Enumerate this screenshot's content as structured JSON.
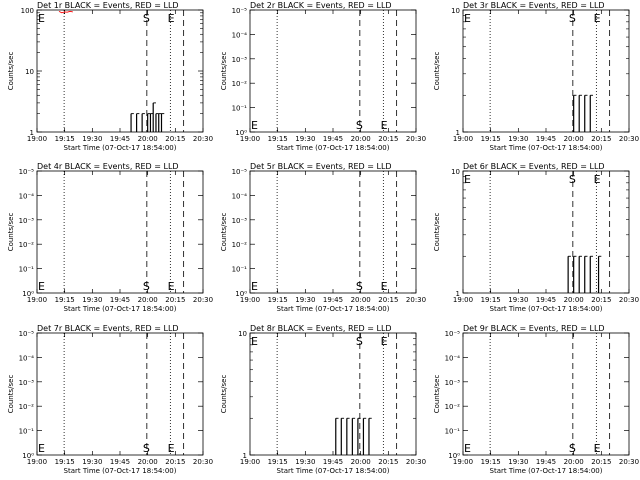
{
  "figure": {
    "xlabel": "Start Time (07-Oct-17 18:54:00)",
    "ylabel": "Counts/sec",
    "x_ticks": [
      "19:00",
      "19:15",
      "19:30",
      "19:45",
      "20:00",
      "20:15",
      "20:30"
    ],
    "colors": {
      "events": "#000000",
      "lld": "#ff0000",
      "background": "#ffffff"
    }
  },
  "chart_data": [
    {
      "type": "line",
      "title": "Det 1r BLACK = Events, RED = LLD",
      "y_scale": "log",
      "y_tick_labels": [
        "1",
        "10",
        "100"
      ],
      "ylim": [
        1,
        100
      ],
      "markers": {
        "E": "E",
        "S": "S",
        "E2": "E"
      },
      "series": [
        {
          "values": [
            [
              33,
              1
            ],
            [
              34,
              2
            ],
            [
              35,
              1
            ],
            [
              36,
              2
            ],
            [
              37,
              1
            ],
            [
              38,
              2
            ],
            [
              39,
              1
            ],
            [
              40,
              2
            ],
            [
              41,
              2
            ],
            [
              42,
              3
            ],
            [
              43,
              2
            ],
            [
              44,
              2
            ],
            [
              45,
              2
            ],
            [
              46,
              1
            ]
          ]
        },
        {
          "name": "LLD",
          "values": [
            [
              0,
              95
            ],
            [
              1,
              90
            ],
            [
              2,
              93
            ],
            [
              3,
              92
            ],
            [
              4,
              95
            ],
            [
              5,
              93
            ]
          ]
        }
      ]
    },
    {
      "type": "line",
      "title": "Det 2r BLACK = Events, RED = LLD",
      "y_scale": "log",
      "y_tick_labels": [
        "10⁰",
        "10⁻¹",
        "10⁻²",
        "10⁻³",
        "10⁻⁴",
        "10⁻⁵"
      ],
      "markers": {
        "E": "E",
        "S": "S",
        "E2": "E"
      },
      "series": []
    },
    {
      "type": "line",
      "title": "Det 3r BLACK = Events, RED = LLD",
      "y_scale": "log",
      "y_tick_labels": [
        "1",
        "10"
      ],
      "ylim": [
        1,
        10
      ],
      "markers": {
        "E": "E",
        "S": "S",
        "E2": "E"
      },
      "series": [
        {
          "values": [
            [
              39,
              1
            ],
            [
              40,
              2
            ],
            [
              41,
              1
            ],
            [
              42,
              2
            ],
            [
              43,
              1
            ],
            [
              44,
              2
            ],
            [
              45,
              1
            ],
            [
              46,
              2
            ],
            [
              47,
              1
            ]
          ]
        }
      ]
    },
    {
      "type": "line",
      "title": "Det 4r BLACK = Events, RED = LLD",
      "y_scale": "log",
      "y_tick_labels": [
        "10⁰",
        "10⁻¹",
        "10⁻²",
        "10⁻³",
        "10⁻⁴",
        "10⁻⁵"
      ],
      "markers": {
        "E": "E",
        "S": "S",
        "E2": "E"
      },
      "series": []
    },
    {
      "type": "line",
      "title": "Det 5r BLACK = Events, RED = LLD",
      "y_scale": "log",
      "y_tick_labels": [
        "10⁰",
        "10⁻¹",
        "10⁻²",
        "10⁻³",
        "10⁻⁴",
        "10⁻⁵"
      ],
      "markers": {
        "E": "E",
        "S": "S",
        "E2": "E"
      },
      "series": []
    },
    {
      "type": "line",
      "title": "Det 6r BLACK = Events, RED = LLD",
      "y_scale": "log",
      "y_tick_labels": [
        "1",
        "10"
      ],
      "ylim": [
        1,
        10
      ],
      "markers": {
        "E": "E",
        "S": "S",
        "E2": "E"
      },
      "series": [
        {
          "values": [
            [
              37,
              1
            ],
            [
              38,
              2
            ],
            [
              39,
              1
            ],
            [
              40,
              2
            ],
            [
              41,
              1
            ],
            [
              42,
              2
            ],
            [
              43,
              1
            ],
            [
              44,
              2
            ],
            [
              45,
              1
            ],
            [
              46,
              2
            ],
            [
              48,
              1
            ],
            [
              49,
              2
            ],
            [
              50,
              1
            ]
          ]
        }
      ]
    },
    {
      "type": "line",
      "title": "Det 7r BLACK = Events, RED = LLD",
      "y_scale": "log",
      "y_tick_labels": [
        "10⁰",
        "10⁻¹",
        "10⁻²",
        "10⁻³",
        "10⁻⁴",
        "10⁻⁵"
      ],
      "markers": {
        "E": "E",
        "S": "S",
        "E2": "E"
      },
      "series": []
    },
    {
      "type": "line",
      "title": "Det 8r BLACK = Events, RED = LLD",
      "y_scale": "log",
      "y_tick_labels": [
        "1",
        "10"
      ],
      "ylim": [
        1,
        10
      ],
      "markers": {
        "E": "E",
        "S": "S",
        "E2": "E"
      },
      "series": [
        {
          "values": [
            [
              30,
              1
            ],
            [
              31,
              2
            ],
            [
              32,
              1
            ],
            [
              33,
              2
            ],
            [
              34,
              1
            ],
            [
              35,
              2
            ],
            [
              36,
              1
            ],
            [
              37,
              2
            ],
            [
              38,
              1
            ],
            [
              39,
              2
            ],
            [
              40,
              1
            ],
            [
              41,
              2
            ],
            [
              42,
              1
            ],
            [
              43,
              2
            ]
          ]
        }
      ]
    },
    {
      "type": "line",
      "title": "Det 9r BLACK = Events, RED = LLD",
      "y_scale": "log",
      "y_tick_labels": [
        "10⁰",
        "10⁻¹",
        "10⁻²",
        "10⁻³",
        "10⁻⁴",
        "10⁻⁵"
      ],
      "markers": {
        "E": "E",
        "S": "S",
        "E2": "E"
      },
      "series": []
    }
  ]
}
